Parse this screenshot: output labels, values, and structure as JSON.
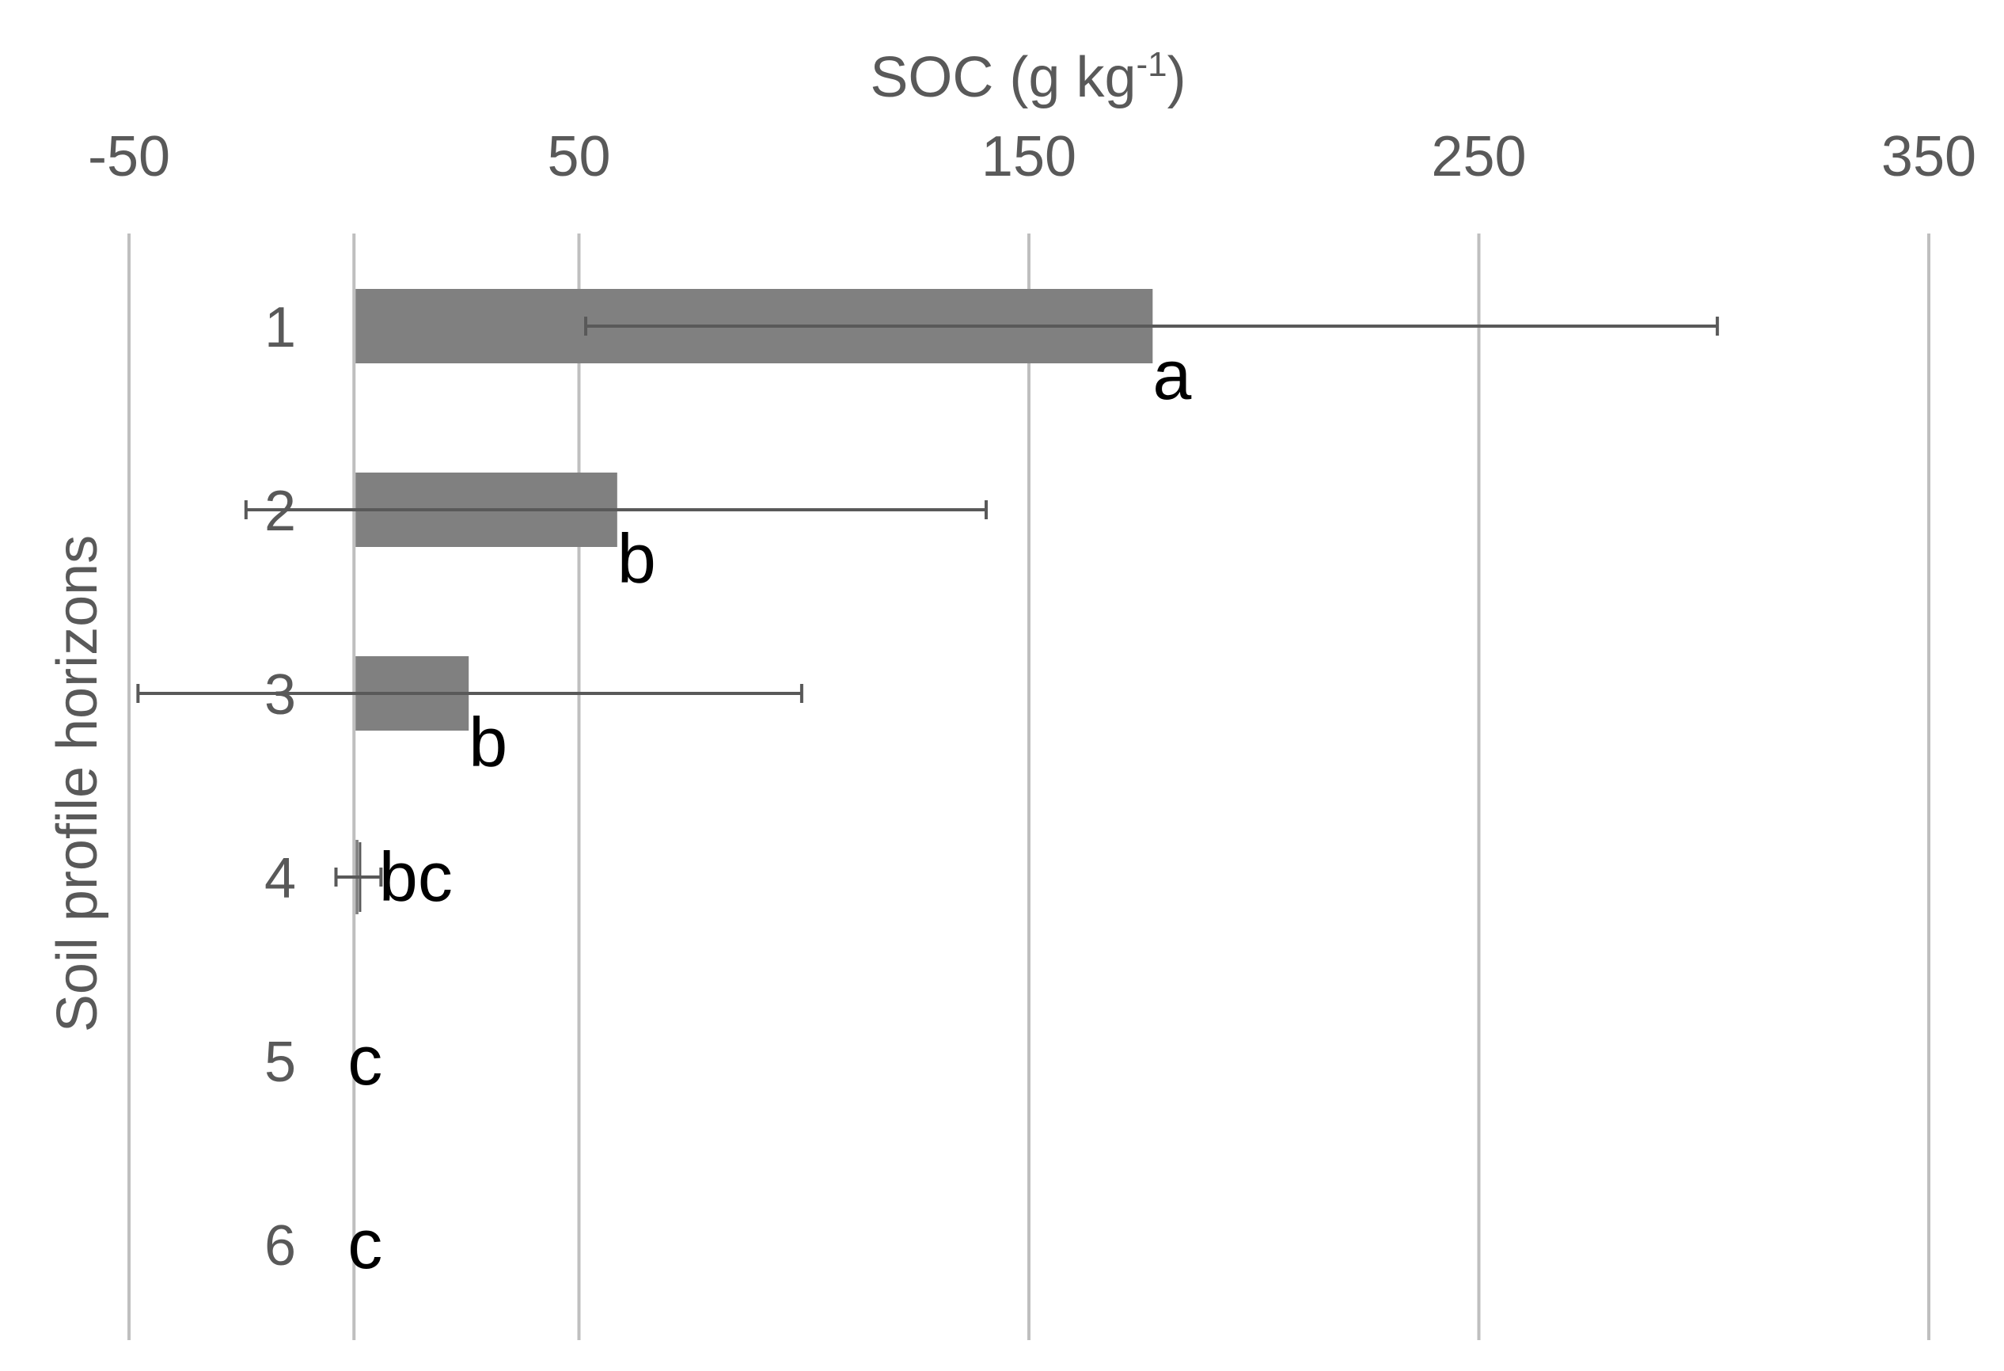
{
  "chart_data": {
    "type": "bar",
    "orientation": "horizontal",
    "title": "",
    "xlabel": "SOC (g kg",
    "xlabel_superscript": "-1",
    "xlabel_suffix": ")",
    "ylabel": "Soil profile horizons",
    "xlim": [
      -50,
      350
    ],
    "x_tick_labels": [
      "-50",
      "50",
      "150",
      "250",
      "350"
    ],
    "x_tick_values": [
      -50,
      50,
      150,
      250,
      350
    ],
    "gridline_values": [
      -50,
      0,
      50,
      150,
      250,
      350
    ],
    "grid": true,
    "x_axis_position": "top",
    "categories": [
      "1",
      "2",
      "3",
      "4",
      "5",
      "6"
    ],
    "series": [
      {
        "name": "SOC",
        "values": [
          177.5,
          58.5,
          25.5,
          1,
          0,
          0
        ],
        "error_low": [
          51.5,
          -24,
          -48,
          -4,
          0,
          0
        ],
        "error_high": [
          303,
          140.5,
          99.5,
          6,
          0,
          0
        ],
        "significance_letters": [
          "a",
          "b",
          "b",
          "bc",
          "c",
          "c"
        ]
      }
    ],
    "colors": {
      "bar": "#808080",
      "error": "#595959",
      "grid": "#bfbfbf",
      "text": "#595959",
      "letter": "#000000"
    }
  }
}
